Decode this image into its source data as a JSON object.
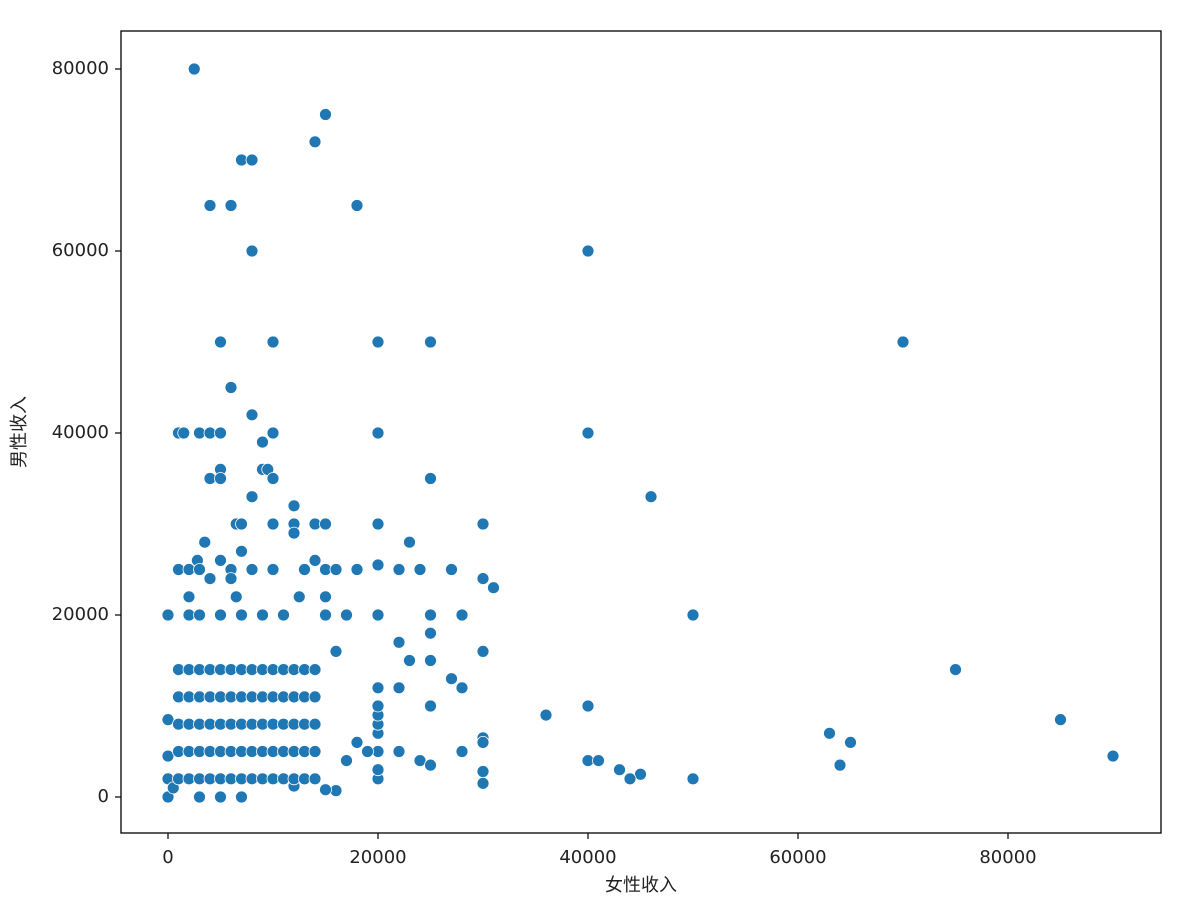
{
  "chart_data": {
    "type": "scatter",
    "xlabel": "女性收入",
    "ylabel": "男性收入",
    "color": "#1f77b4",
    "xlim": [
      -4476,
      94571
    ],
    "ylim": [
      -3956,
      84176
    ],
    "xticks": [
      0,
      20000,
      40000,
      60000,
      80000
    ],
    "yticks": [
      0,
      20000,
      40000,
      60000,
      80000
    ],
    "x": [
      2500,
      15000,
      14000,
      7000,
      8000,
      4000,
      6000,
      18000,
      8000,
      40000,
      5000,
      10000,
      20000,
      25000,
      70000,
      6000,
      8000,
      1000,
      1500,
      3000,
      4000,
      5000,
      10000,
      20000,
      40000,
      9000,
      9000,
      9500,
      5000,
      10000,
      4000,
      5000,
      25000,
      46000,
      8000,
      12000,
      6500,
      7000,
      10000,
      12000,
      14000,
      15000,
      20000,
      30000,
      12000,
      23000,
      3500,
      7000,
      14000,
      2800,
      5000,
      20000,
      31000,
      30000,
      1000,
      2000,
      3000,
      6000,
      8000,
      10000,
      13000,
      15000,
      16000,
      18000,
      22000,
      24000,
      27000,
      4000,
      6000,
      2000,
      6500,
      12500,
      15000,
      0,
      2000,
      3000,
      5000,
      7000,
      9000,
      11000,
      15000,
      17000,
      20000,
      25000,
      28000,
      50000,
      22000,
      16000,
      30000,
      23000,
      25000,
      25000,
      75000,
      27000,
      28000,
      22000,
      20000,
      36000,
      40000,
      25000,
      85000,
      63000,
      65000,
      30000,
      30000,
      28000,
      22000,
      24000,
      25000,
      40000,
      41000,
      43000,
      45000,
      44000,
      50000,
      64000,
      90000,
      30000,
      30000,
      20000,
      20000,
      20000,
      20000,
      20000,
      20000,
      20000,
      19000,
      18000,
      17000,
      16000,
      15000,
      14000,
      12000,
      0,
      0,
      0,
      0,
      500,
      7000,
      5000,
      3000,
      1000,
      2000,
      3000,
      4000,
      5000,
      6000,
      7000,
      8000,
      9000,
      10000,
      11000,
      12000,
      13000,
      14000,
      1000,
      2000,
      3000,
      4000,
      5000,
      6000,
      7000,
      8000,
      9000,
      10000,
      11000,
      12000,
      13000,
      14000,
      1000,
      2000,
      3000,
      4000,
      5000,
      6000,
      7000,
      8000,
      9000,
      10000,
      11000,
      12000,
      13000,
      14000,
      1000,
      2000,
      3000,
      4000,
      5000,
      6000,
      7000,
      8000,
      9000,
      10000,
      11000,
      12000,
      13000,
      14000,
      1000,
      2000,
      3000,
      4000,
      5000,
      6000,
      7000,
      8000,
      9000,
      10000,
      11000,
      12000,
      13000,
      14000
    ],
    "values": [
      80000,
      75000,
      72000,
      70000,
      70000,
      65000,
      65000,
      65000,
      60000,
      60000,
      50000,
      50000,
      50000,
      50000,
      50000,
      45000,
      42000,
      40000,
      40000,
      40000,
      40000,
      40000,
      40000,
      40000,
      40000,
      39000,
      36000,
      36000,
      36000,
      35000,
      35000,
      35000,
      35000,
      33000,
      33000,
      32000,
      30000,
      30000,
      30000,
      30000,
      30000,
      30000,
      30000,
      30000,
      29000,
      28000,
      28000,
      27000,
      26000,
      26000,
      26000,
      25500,
      23000,
      24000,
      25000,
      25000,
      25000,
      25000,
      25000,
      25000,
      25000,
      25000,
      25000,
      25000,
      25000,
      25000,
      25000,
      24000,
      24000,
      22000,
      22000,
      22000,
      22000,
      20000,
      20000,
      20000,
      20000,
      20000,
      20000,
      20000,
      20000,
      20000,
      20000,
      20000,
      20000,
      20000,
      17000,
      16000,
      16000,
      15000,
      15000,
      18000,
      14000,
      13000,
      12000,
      12000,
      12000,
      9000,
      10000,
      10000,
      8500,
      7000,
      6000,
      6500,
      6000,
      5000,
      5000,
      4000,
      3500,
      4000,
      4000,
      3000,
      2500,
      2000,
      2000,
      3500,
      4500,
      2800,
      1500,
      2000,
      3000,
      5000,
      7000,
      8000,
      9000,
      10000,
      5000,
      6000,
      4000,
      700,
      800,
      2000,
      1200,
      8500,
      4500,
      0,
      2000,
      1000,
      0,
      0,
      0,
      2000,
      2000,
      2000,
      2000,
      2000,
      2000,
      2000,
      2000,
      2000,
      2000,
      2000,
      2000,
      2000,
      2000,
      5000,
      5000,
      5000,
      5000,
      5000,
      5000,
      5000,
      5000,
      5000,
      5000,
      5000,
      5000,
      5000,
      5000,
      8000,
      8000,
      8000,
      8000,
      8000,
      8000,
      8000,
      8000,
      8000,
      8000,
      8000,
      8000,
      8000,
      8000,
      11000,
      11000,
      11000,
      11000,
      11000,
      11000,
      11000,
      11000,
      11000,
      11000,
      11000,
      11000,
      11000,
      11000,
      14000,
      14000,
      14000,
      14000,
      14000,
      14000,
      14000,
      14000,
      14000,
      14000,
      14000,
      14000,
      14000,
      14000
    ]
  }
}
